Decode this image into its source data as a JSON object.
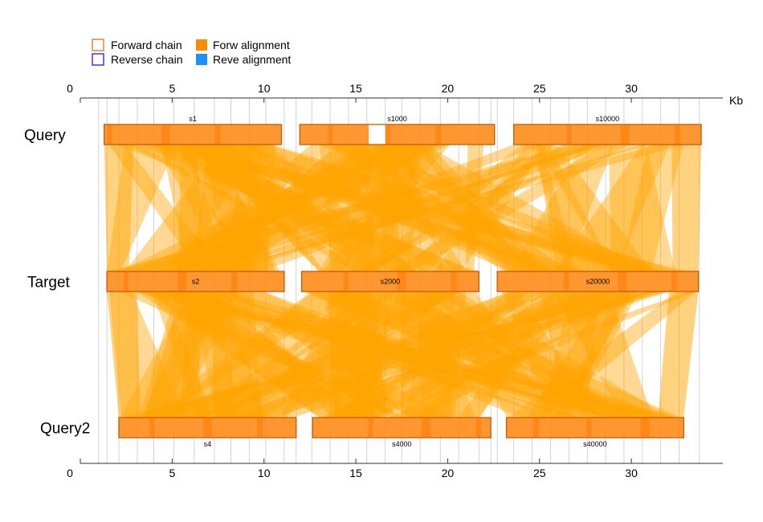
{
  "legend": {
    "forward_chain": "Forward chain",
    "reverse_chain": "Reverse chain",
    "forw_alignment": "Forw alignment",
    "reve_alignment": "Reve alignment"
  },
  "colors": {
    "forward_chain_stroke": "#e8823a",
    "reverse_chain_stroke": "#3b3bd6",
    "forw_alignment": "#ff8c00",
    "reve_alignment": "#1e90ff",
    "chain_fill": "#ff8c1a",
    "chain_stroke": "#c8600a",
    "ribbon": "#ffa500",
    "gridline": "#c8c8c8"
  },
  "axis": {
    "unit": "Kb",
    "min": 0,
    "max": 35,
    "ticks": [
      0,
      5,
      10,
      15,
      20,
      25,
      30
    ],
    "tick_labels": [
      "0",
      "5",
      "10",
      "15",
      "20",
      "25",
      "30"
    ]
  },
  "rows": [
    {
      "label": "Query",
      "chains": [
        {
          "name": "s1",
          "start": 1.3,
          "end": 10.95
        },
        {
          "name": "s1000",
          "start": 11.95,
          "end": 22.55
        },
        {
          "name": "s10000",
          "start": 23.6,
          "end": 33.8
        }
      ],
      "gaps": [
        {
          "start": 15.7,
          "end": 16.6
        }
      ],
      "name_position": "above"
    },
    {
      "label": "Target",
      "chains": [
        {
          "name": "s2",
          "start": 1.45,
          "end": 11.1
        },
        {
          "name": "s2000",
          "start": 12.05,
          "end": 21.7
        },
        {
          "name": "s20000",
          "start": 22.7,
          "end": 33.65
        }
      ],
      "gaps": [],
      "name_position": "inside"
    },
    {
      "label": "Query2",
      "chains": [
        {
          "name": "s4",
          "start": 2.1,
          "end": 11.75
        },
        {
          "name": "s4000",
          "start": 12.65,
          "end": 22.35
        },
        {
          "name": "s40000",
          "start": 23.2,
          "end": 32.85
        }
      ],
      "gaps": [],
      "name_position": "below"
    }
  ],
  "gridlines": [
    1.0,
    1.45,
    2.1,
    3.1,
    4.0,
    5.1,
    6.2,
    7.3,
    8.2,
    9.2,
    10.1,
    11.1,
    11.75,
    12.6,
    13.6,
    14.6,
    15.6,
    16.6,
    17.5,
    18.5,
    19.6,
    20.6,
    21.7,
    22.35,
    22.7,
    23.6,
    24.6,
    25.6,
    26.6,
    27.6,
    28.6,
    29.6,
    30.6,
    31.6,
    32.6,
    33.7
  ]
}
